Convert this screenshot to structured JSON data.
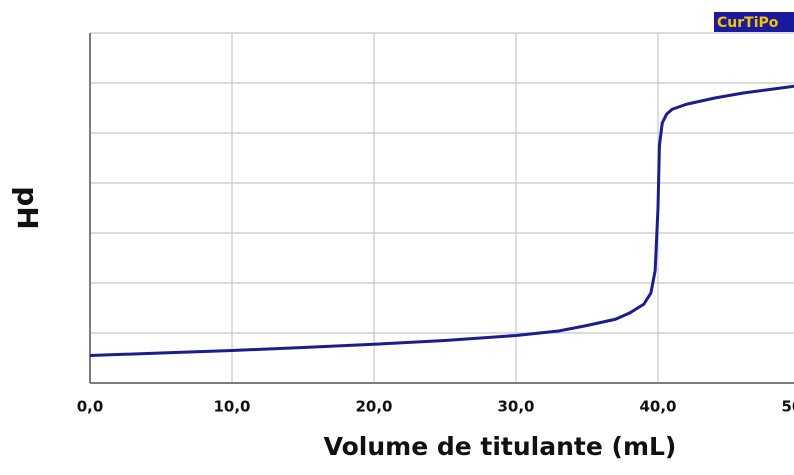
{
  "chart_data": {
    "type": "line",
    "badge": "CurTiPo",
    "xlabel": "Volume de titulante (mL)",
    "ylabel": "pH",
    "x": [
      0,
      5,
      10,
      15,
      20,
      25,
      30,
      33,
      35,
      37,
      38,
      39,
      39.5,
      39.8,
      40,
      40.1,
      40.3,
      40.6,
      41,
      42,
      44,
      46,
      48,
      50
    ],
    "series": [
      {
        "name": "pH",
        "color": "#1c1c8f",
        "values": [
          1.1,
          1.2,
          1.3,
          1.42,
          1.55,
          1.7,
          1.9,
          2.08,
          2.3,
          2.55,
          2.8,
          3.15,
          3.6,
          4.5,
          7.0,
          9.5,
          10.4,
          10.75,
          10.95,
          11.15,
          11.4,
          11.6,
          11.75,
          11.9
        ]
      }
    ],
    "xlim": [
      0,
      50
    ],
    "xticks": [
      {
        "value": 0,
        "label": "0,0"
      },
      {
        "value": 10,
        "label": "10,0"
      },
      {
        "value": 20,
        "label": "20,0"
      },
      {
        "value": 30,
        "label": "30,0"
      },
      {
        "value": 40,
        "label": "40,0"
      },
      {
        "value": 50,
        "label": "50,0"
      }
    ],
    "ylim": [
      0,
      14
    ],
    "yticks": [
      0,
      2,
      4,
      6,
      8,
      10,
      12,
      14
    ],
    "grid": true
  }
}
